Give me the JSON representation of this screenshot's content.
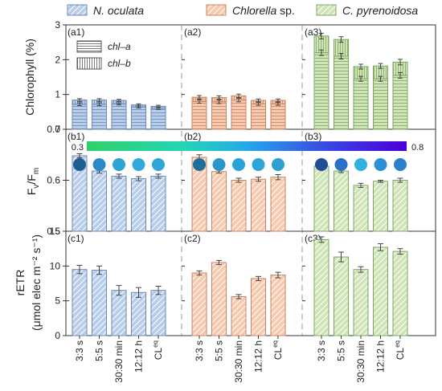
{
  "legend": [
    {
      "label": "N. oculata",
      "italic": true
    },
    {
      "label": "Chlorella",
      "suffix": " sp.",
      "italic": true
    },
    {
      "label": "C. pyrenoidosa",
      "italic": true
    }
  ],
  "colors": {
    "N. oculata": {
      "face": "#b7cde9",
      "edge": "#6a88b6",
      "hatch": "#5b80c1"
    },
    "Chlorella": {
      "face": "#f7c9ae",
      "edge": "#c88464",
      "hatch": "#e79d7c"
    },
    "C. pyrenoidosa": {
      "face": "#cfe5b8",
      "edge": "#7fa760",
      "hatch": "#8ebc6a"
    }
  },
  "chart_data": [
    {
      "type": "bar",
      "panel": "chlorophyll",
      "ylabel": "Chlorophyll (%)",
      "ylim": [
        0,
        3
      ],
      "yticks": [
        "0",
        "1",
        "2",
        "3"
      ],
      "panel_labels": [
        "(a1)",
        "(a2)",
        "(a3)"
      ],
      "stack_legend": [
        "chl–a",
        "chl–b"
      ],
      "categories": [
        "3:3 s",
        "5:5 s",
        "30:30 min",
        "12:12 h",
        "CLeq"
      ],
      "series": [
        {
          "name": "N. oculata",
          "chl_a": [
            0.72,
            0.72,
            0.73,
            0.64,
            0.6
          ],
          "chl_b": [
            0.12,
            0.12,
            0.1,
            0.06,
            0.06
          ],
          "err": [
            0.04,
            0.04,
            0.03,
            0.03,
            0.03
          ]
        },
        {
          "name": "Chlorella",
          "chl_a": [
            0.8,
            0.79,
            0.84,
            0.73,
            0.73
          ],
          "chl_b": [
            0.12,
            0.12,
            0.12,
            0.1,
            0.1
          ],
          "err": [
            0.05,
            0.05,
            0.05,
            0.04,
            0.04
          ]
        },
        {
          "name": "C. pyrenoidosa",
          "chl_a": [
            2.2,
            2.1,
            1.45,
            1.45,
            1.55
          ],
          "chl_b": [
            0.48,
            0.48,
            0.35,
            0.37,
            0.38
          ],
          "err": [
            0.08,
            0.08,
            0.07,
            0.07,
            0.08
          ]
        }
      ]
    },
    {
      "type": "bar",
      "panel": "fvfm",
      "ylabel": "Fv/Fm",
      "ylim": [
        0.5,
        0.7
      ],
      "yticks": [
        "0.5",
        "0.6",
        "0.7"
      ],
      "panel_labels": [
        "(b1)",
        "(b2)",
        "(b3)"
      ],
      "colorbar": {
        "min": "0.3",
        "max": "0.8"
      },
      "categories": [
        "3:3 s",
        "5:5 s",
        "30:30 min",
        "12:12 h",
        "CLeq"
      ],
      "series": [
        {
          "name": "N. oculata",
          "values": [
            0.648,
            0.618,
            0.608,
            0.603,
            0.608
          ],
          "err": [
            0.004,
            0.004,
            0.004,
            0.004,
            0.004
          ]
        },
        {
          "name": "Chlorella",
          "values": [
            0.645,
            0.617,
            0.6,
            0.602,
            0.606
          ],
          "err": [
            0.005,
            0.003,
            0.004,
            0.004,
            0.005
          ]
        },
        {
          "name": "C. pyrenoidosa",
          "values": [
            0.628,
            0.618,
            0.59,
            0.598,
            0.6
          ],
          "err": [
            0.003,
            0.003,
            0.004,
            0.002,
            0.004
          ]
        }
      ]
    },
    {
      "type": "bar",
      "panel": "retr",
      "ylabel_line1": "rETR",
      "ylabel_line2": "(μmol elec m⁻² s⁻¹)",
      "ylim": [
        0,
        15
      ],
      "yticks": [
        "0",
        "5",
        "10",
        "15"
      ],
      "panel_labels": [
        "(c1)",
        "(c2)",
        "(c3)"
      ],
      "categories": [
        "3:3 s",
        "5:5 s",
        "30:30 min",
        "12:12 h",
        "CLeq"
      ],
      "series": [
        {
          "name": "N. oculata",
          "values": [
            9.5,
            9.4,
            6.5,
            6.2,
            6.5
          ],
          "err": [
            0.6,
            0.6,
            0.7,
            0.7,
            0.6
          ]
        },
        {
          "name": "Chlorella",
          "values": [
            9.0,
            10.5,
            5.6,
            8.2,
            8.7
          ],
          "err": [
            0.3,
            0.3,
            0.3,
            0.3,
            0.4
          ]
        },
        {
          "name": "C. pyrenoidosa",
          "values": [
            13.8,
            11.3,
            9.5,
            12.7,
            12.1
          ],
          "err": [
            0.4,
            0.7,
            0.4,
            0.5,
            0.4
          ]
        }
      ]
    }
  ],
  "images": {
    "circle_colors": [
      [
        "#1f5f8f",
        "#2a8ac6",
        "#2ea3d6",
        "#33a8dc",
        "#2fa6d8"
      ],
      [
        "#1f6f9a",
        "#2896c9",
        "#2aa2d5",
        "#2ea4d8",
        "#2ca0d2"
      ],
      [
        "#1f4d9a",
        "#2a6fc8",
        "#2fb2e0",
        "#2c8fd6",
        "#2a7fcf"
      ]
    ]
  }
}
